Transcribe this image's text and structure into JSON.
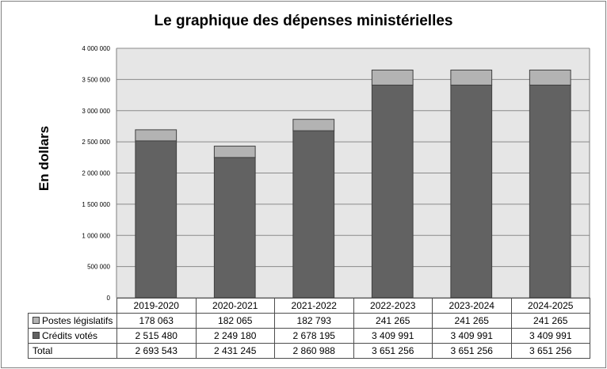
{
  "chart_data": {
    "type": "bar",
    "stacked": true,
    "title": "Le graphique des dépenses ministérielles",
    "ylabel": "En dollars",
    "xlabel": "",
    "ylim": [
      0,
      4000000
    ],
    "yticks": [
      "0",
      "500 000",
      "1 000 000",
      "1 500 000",
      "2 000 000",
      "2 500 000",
      "3 000 000",
      "3 500 000",
      "4 000 000"
    ],
    "grid": true,
    "categories": [
      "2019-2020",
      "2020-2021",
      "2021-2022",
      "2022-2023",
      "2023-2024",
      "2024-2025"
    ],
    "series": [
      {
        "name": "Crédits votés",
        "color": "#626262",
        "values": [
          2515480,
          2249180,
          2678195,
          3409991,
          3409991,
          3409991
        ],
        "labels": [
          "2 515 480",
          "2 249 180",
          "2 678 195",
          "3 409 991",
          "3 409 991",
          "3 409 991"
        ]
      },
      {
        "name": "Postes législatifs",
        "color": "#b3b3b3",
        "values": [
          178063,
          182065,
          182793,
          241265,
          241265,
          241265
        ],
        "labels": [
          "178 063",
          "182 065",
          "182 793",
          "241 265",
          "241 265",
          "241 265"
        ]
      }
    ],
    "total": {
      "name": "Total",
      "labels": [
        "2 693 543",
        "2 431 245",
        "2 860 988",
        "3 651 256",
        "3 651 256",
        "3 651 256"
      ]
    }
  },
  "colors": {
    "plot_background": "#e6e6e6",
    "gridline": "#8a8a8a",
    "bar_outline": "#404040"
  }
}
